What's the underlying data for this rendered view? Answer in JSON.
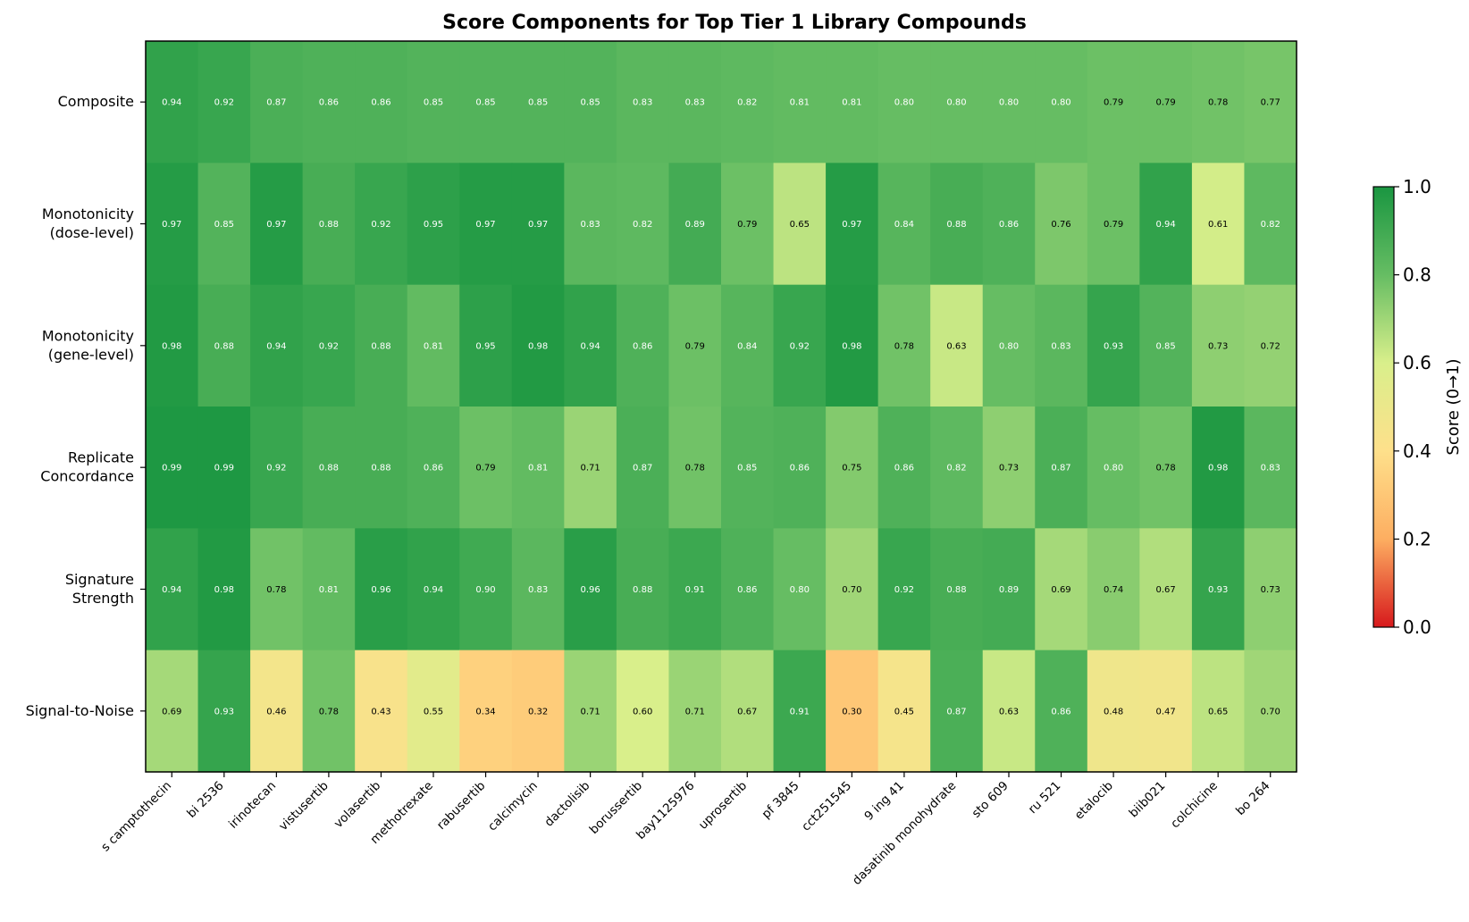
{
  "chart_data": {
    "type": "heatmap",
    "title": "Score Components for Top Tier 1 Library Compounds",
    "columns": [
      "s camptothecin",
      "bi 2536",
      "irinotecan",
      "vistusertib",
      "volasertib",
      "methotrexate",
      "rabusertib",
      "calcimycin",
      "dactolisib",
      "borussertib",
      "bay1125976",
      "uprosertib",
      "pf 3845",
      "cct251545",
      "9 ing 41",
      "dasatinib monohydrate",
      "sto 609",
      "ru 521",
      "etalocib",
      "biib021",
      "colchicine",
      "bo 264"
    ],
    "rows": [
      {
        "label": "Composite",
        "values": [
          0.94,
          0.92,
          0.87,
          0.86,
          0.86,
          0.85,
          0.85,
          0.85,
          0.85,
          0.83,
          0.83,
          0.82,
          0.81,
          0.81,
          0.8,
          0.8,
          0.8,
          0.8,
          0.79,
          0.79,
          0.78,
          0.77
        ]
      },
      {
        "label": "Monotonicity\n(dose-level)",
        "values": [
          0.97,
          0.85,
          0.97,
          0.88,
          0.92,
          0.95,
          0.97,
          0.97,
          0.83,
          0.82,
          0.89,
          0.79,
          0.65,
          0.97,
          0.84,
          0.88,
          0.86,
          0.76,
          0.79,
          0.94,
          0.61,
          0.82
        ]
      },
      {
        "label": "Monotonicity\n(gene-level)",
        "values": [
          0.98,
          0.88,
          0.94,
          0.92,
          0.88,
          0.81,
          0.95,
          0.98,
          0.94,
          0.86,
          0.79,
          0.84,
          0.92,
          0.98,
          0.78,
          0.63,
          0.8,
          0.83,
          0.93,
          0.85,
          0.73,
          0.72
        ]
      },
      {
        "label": "Replicate\nConcordance",
        "values": [
          0.99,
          0.99,
          0.92,
          0.88,
          0.88,
          0.86,
          0.79,
          0.81,
          0.71,
          0.87,
          0.78,
          0.85,
          0.86,
          0.75,
          0.86,
          0.82,
          0.73,
          0.87,
          0.8,
          0.78,
          0.98,
          0.83
        ]
      },
      {
        "label": "Signature\nStrength",
        "values": [
          0.94,
          0.98,
          0.78,
          0.81,
          0.96,
          0.94,
          0.9,
          0.83,
          0.96,
          0.88,
          0.91,
          0.86,
          0.8,
          0.7,
          0.92,
          0.88,
          0.89,
          0.69,
          0.74,
          0.67,
          0.93,
          0.73
        ]
      },
      {
        "label": "Signal-to-Noise",
        "values": [
          0.69,
          0.93,
          0.46,
          0.78,
          0.43,
          0.55,
          0.34,
          0.32,
          0.71,
          0.6,
          0.71,
          0.67,
          0.91,
          0.3,
          0.45,
          0.87,
          0.63,
          0.86,
          0.48,
          0.47,
          0.65,
          0.7
        ]
      }
    ],
    "colorbar": {
      "label": "Score (0→1)",
      "range": [
        0,
        1
      ],
      "ticks": [
        "0.0",
        "0.2",
        "0.4",
        "0.6",
        "0.8",
        "1.0"
      ],
      "colors": [
        "#d7191c",
        "#fdae61",
        "#fee08b",
        "#d9ef8b",
        "#66bd63",
        "#1a9641"
      ]
    }
  }
}
